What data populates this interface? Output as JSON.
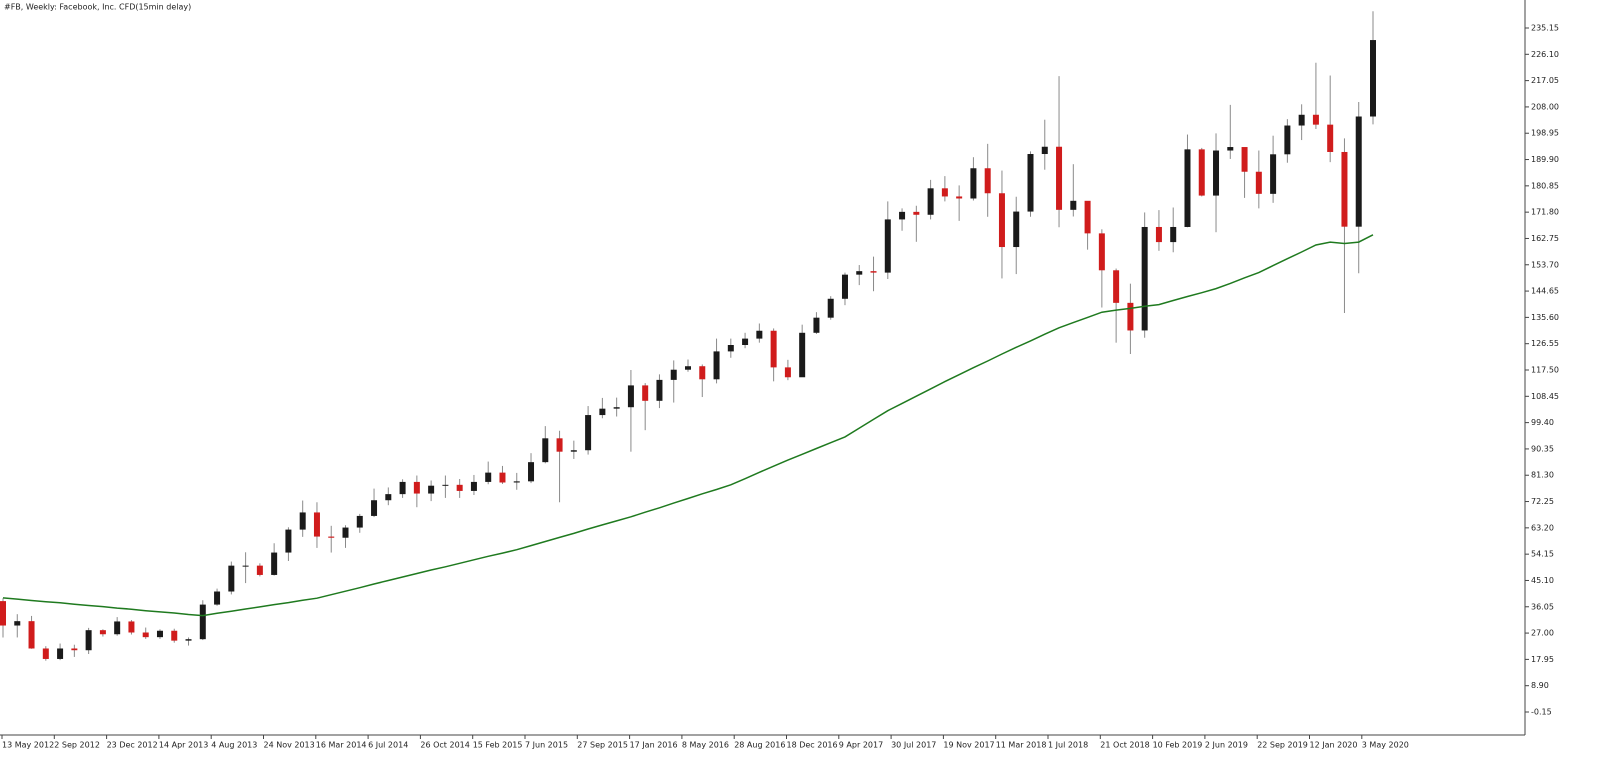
{
  "chart_data": {
    "type": "candlestick",
    "title": "#FB, Weekly:  Facebook, Inc. CFD(15min delay)",
    "open": [
      38.0,
      29.6,
      31.1,
      21.7,
      18.1,
      21.7,
      21.1,
      28.0,
      26.6,
      31.0,
      27.2,
      25.6,
      27.8,
      24.4,
      24.9,
      36.8,
      41.3,
      50.2,
      50.2,
      47.0,
      54.7,
      62.6,
      68.5,
      60.2,
      59.8,
      63.3,
      67.3,
      72.7,
      74.8,
      79.0,
      75.0,
      77.7,
      78.0,
      75.9,
      79.0,
      82.2,
      78.8,
      79.2,
      85.8,
      94.0,
      89.4,
      89.9,
      102.0,
      104.2,
      104.7,
      112.2,
      106.9,
      114.1,
      117.6,
      118.8,
      114.3,
      123.9,
      126.1,
      128.3,
      131.0,
      118.4,
      115.0,
      130.3,
      135.5,
      142.0,
      150.3,
      151.5,
      151.0,
      169.3,
      171.9,
      170.9,
      180.0,
      177.2,
      176.5,
      186.9,
      178.3,
      159.8,
      172.0,
      191.8,
      194.3,
      172.6,
      175.7,
      164.5,
      151.8,
      140.6,
      131.1,
      166.7,
      161.5,
      166.7,
      193.4,
      177.5,
      193.0,
      194.2,
      185.7,
      178.1,
      191.7,
      201.6,
      205.3,
      201.9,
      192.5,
      166.8,
      204.7
    ],
    "high": [
      39.0,
      33.5,
      32.9,
      22.5,
      23.4,
      23.0,
      28.8,
      28.3,
      32.5,
      31.5,
      28.9,
      28.3,
      28.5,
      25.5,
      38.3,
      42.3,
      51.6,
      54.8,
      51.0,
      57.9,
      63.4,
      72.6,
      72.0,
      63.9,
      64.1,
      68.0,
      76.7,
      77.1,
      79.9,
      81.2,
      79.5,
      81.2,
      80.0,
      81.4,
      86.0,
      84.5,
      82.1,
      88.9,
      98.2,
      96.6,
      93.2,
      105.1,
      107.9,
      108.0,
      117.5,
      113.0,
      116.0,
      120.8,
      121.1,
      119.4,
      128.3,
      128.3,
      130.3,
      133.5,
      131.8,
      121.0,
      133.1,
      137.4,
      142.9,
      151.0,
      153.6,
      156.5,
      175.5,
      173.1,
      174.0,
      182.9,
      184.2,
      181.0,
      190.7,
      195.3,
      186.1,
      177.1,
      192.7,
      203.6,
      218.6,
      188.3,
      175.0,
      165.9,
      152.4,
      147.2,
      171.7,
      172.5,
      173.4,
      198.5,
      193.9,
      198.9,
      208.7,
      192.6,
      193.0,
      198.1,
      203.8,
      208.9,
      223.2,
      218.8,
      197.2,
      209.7,
      240.9
    ],
    "low": [
      25.5,
      25.5,
      21.6,
      17.5,
      17.7,
      18.8,
      19.8,
      25.8,
      26.1,
      26.5,
      25.0,
      25.0,
      23.7,
      22.7,
      24.6,
      36.4,
      40.3,
      44.2,
      46.5,
      46.8,
      51.8,
      60.1,
      56.3,
      54.7,
      56.3,
      61.5,
      66.9,
      71.0,
      73.5,
      70.3,
      72.4,
      73.5,
      73.5,
      74.5,
      78.2,
      78.3,
      76.3,
      78.6,
      85.4,
      72.0,
      86.9,
      88.4,
      100.9,
      101.5,
      89.4,
      96.8,
      104.4,
      106.3,
      116.9,
      108.2,
      112.9,
      121.7,
      125.0,
      126.9,
      113.6,
      114.0,
      115.5,
      129.9,
      134.8,
      139.8,
      146.7,
      144.6,
      148.8,
      165.4,
      161.6,
      169.3,
      175.5,
      168.8,
      175.8,
      170.2,
      149.0,
      150.5,
      170.2,
      186.4,
      166.6,
      170.3,
      158.9,
      139.0,
      126.9,
      123.0,
      128.6,
      158.5,
      158.0,
      166.6,
      177.2,
      164.9,
      190.1,
      176.7,
      173.1,
      175.0,
      188.8,
      196.6,
      200.4,
      189.0,
      137.1,
      150.8,
      202.0
    ],
    "close": [
      29.6,
      31.1,
      21.7,
      18.1,
      21.7,
      21.1,
      28.0,
      26.6,
      31.0,
      27.2,
      25.6,
      27.8,
      24.4,
      24.9,
      36.8,
      41.3,
      50.2,
      50.2,
      47.0,
      54.7,
      62.6,
      68.5,
      60.2,
      59.8,
      63.3,
      67.3,
      72.7,
      74.8,
      79.0,
      75.0,
      77.7,
      78.0,
      75.9,
      79.0,
      82.2,
      78.8,
      79.2,
      85.8,
      94.0,
      89.4,
      89.9,
      102.0,
      104.2,
      104.7,
      112.2,
      106.9,
      114.1,
      117.6,
      118.8,
      114.3,
      123.9,
      126.1,
      128.3,
      131.0,
      118.4,
      115.0,
      130.3,
      135.5,
      142.0,
      150.3,
      151.5,
      151.0,
      169.3,
      171.9,
      170.9,
      180.0,
      177.2,
      176.5,
      186.9,
      178.3,
      159.8,
      172.0,
      191.8,
      194.3,
      172.6,
      175.7,
      164.5,
      151.8,
      140.6,
      131.1,
      166.7,
      161.5,
      166.7,
      193.4,
      177.5,
      193.0,
      194.2,
      185.7,
      178.1,
      191.7,
      201.6,
      205.3,
      201.9,
      192.5,
      166.8,
      204.7,
      231.0
    ],
    "ma_values": [
      39.1,
      38.7,
      38.2,
      37.8,
      37.4,
      36.9,
      36.5,
      36.1,
      35.6,
      35.2,
      34.7,
      34.3,
      33.9,
      33.4,
      33.0,
      33.8,
      34.5,
      35.3,
      36.0,
      36.8,
      37.5,
      38.3,
      39.0,
      40.2,
      41.4,
      42.6,
      43.9,
      45.1,
      46.3,
      47.5,
      48.7,
      49.8,
      51.0,
      52.2,
      53.4,
      54.5,
      55.7,
      57.1,
      58.5,
      59.9,
      61.3,
      62.8,
      64.2,
      65.6,
      67.0,
      68.6,
      70.1,
      71.7,
      73.3,
      74.9,
      76.4,
      78.0,
      80.1,
      82.3,
      84.4,
      86.5,
      88.5,
      90.5,
      92.5,
      94.5,
      97.5,
      100.5,
      103.5,
      106,
      108.5,
      111,
      113.5,
      115.9,
      118.3,
      120.6,
      123,
      125.3,
      127.5,
      129.8,
      132,
      133.8,
      135.6,
      137.4,
      138.1,
      138.7,
      139.4,
      140,
      141.4,
      142.8,
      144.1,
      145.5,
      147.3,
      149.2,
      151,
      153.4,
      155.8,
      158.1,
      160.5,
      161.5,
      161,
      161.5,
      164
    ],
    "up_color": "#1a1a1a",
    "down_color": "#d01c1c",
    "wick_color": "#8a8a8a",
    "ma_color": "#1f7a1f",
    "x_labels": [
      "13 May 2012",
      "2 Sep 2012",
      "23 Dec 2012",
      "14 Apr 2013",
      "4 Aug 2013",
      "24 Nov 2013",
      "16 Mar 2014",
      "6 Jul 2014",
      "26 Oct 2014",
      "15 Feb 2015",
      "7 Jun 2015",
      "27 Sep 2015",
      "17 Jan 2016",
      "8 May 2016",
      "28 Aug 2016",
      "18 Dec 2016",
      "9 Apr 2017",
      "30 Jul 2017",
      "19 Nov 2017",
      "11 Mar 2018",
      "1 Jul 2018",
      "21 Oct 2018",
      "10 Feb 2019",
      "2 Jun 2019",
      "22 Sep 2019",
      "12 Jan 2020",
      "3 May 2020"
    ],
    "ylim": [
      -8.06,
      244.78
    ],
    "yticks": [
      235.15,
      {
        "value": 226.1,
        "label": "226.10"
      },
      217.05,
      {
        "value": 208,
        "label": "208.00"
      },
      198.95,
      {
        "value": 189.9,
        "label": "189.90"
      },
      180.85,
      {
        "value": 171.8,
        "label": "171.80"
      },
      162.75,
      {
        "value": 153.7,
        "label": "153.70"
      },
      144.65,
      {
        "value": 135.6,
        "label": "135.60"
      },
      126.55,
      {
        "value": 117.5,
        "label": "117.50"
      },
      108.45,
      {
        "value": 99.4,
        "label": "99.40"
      },
      90.35,
      {
        "value": 81.3,
        "label": "81.30"
      },
      72.25,
      {
        "value": 63.2,
        "label": "63.20"
      },
      54.15,
      {
        "value": 45.1,
        "label": "45.10"
      },
      36.05,
      {
        "value": 27,
        "label": "27.00"
      },
      17.95,
      {
        "value": 8.9,
        "label": "8.90"
      },
      -0.15
    ]
  }
}
